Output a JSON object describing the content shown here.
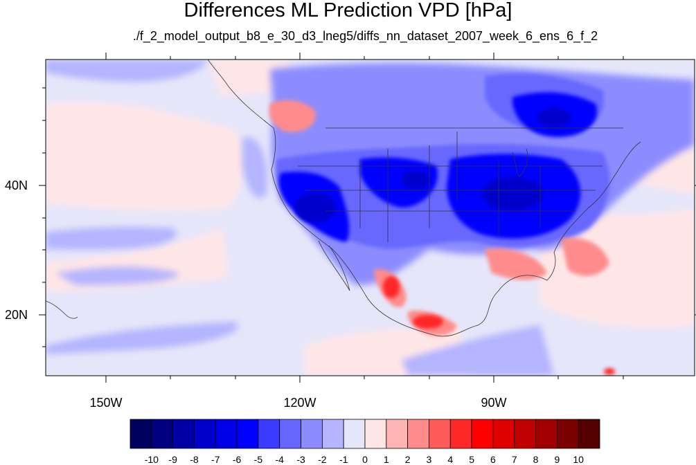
{
  "title": "Differences ML Prediction VPD [hPa]",
  "subtitle": "./f_2_model_output_b8_e_30_d3_lneg5/diffs_nn_dataset_2007_week_6_ens_6_f_2",
  "map": {
    "lon_labels": [
      "150W",
      "120W",
      "90W"
    ],
    "lat_labels": [
      "40N",
      "20N"
    ],
    "background_color": "#e6e6fa"
  },
  "colorbar": {
    "labels": [
      "-10",
      "-9",
      "-8",
      "-7",
      "-6",
      "-5",
      "-4",
      "-3",
      "-2",
      "-1",
      "0",
      "1",
      "2",
      "3",
      "4",
      "5",
      "6",
      "7",
      "8",
      "9",
      "10"
    ],
    "colors": [
      "#00005e",
      "#000080",
      "#0000a5",
      "#0000cc",
      "#0000e6",
      "#0000ff",
      "#3b3bff",
      "#6767ff",
      "#8c8cff",
      "#b4b4ff",
      "#e6e6fa",
      "#ffe6e6",
      "#ffb4b4",
      "#ff8c8c",
      "#ff5a5a",
      "#ff2828",
      "#ff0000",
      "#e10000",
      "#c00000",
      "#a00000",
      "#7d0000",
      "#550000"
    ]
  }
}
